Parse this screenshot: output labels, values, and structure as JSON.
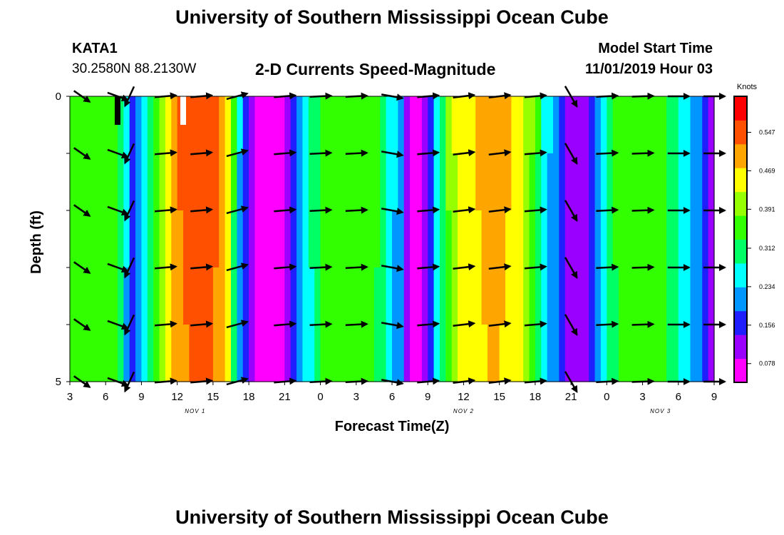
{
  "header": {
    "title": "University of Southern Mississippi Ocean Cube",
    "station_id": "KATA1",
    "station_coords": "30.2580N 88.2130W",
    "subtitle": "2-D Currents Speed-Magnitude",
    "model_start_label": "Model Start Time",
    "model_start_value": "11/01/2019 Hour 03"
  },
  "footer": {
    "title": "University of Southern Mississippi Ocean Cube"
  },
  "chart_data": {
    "type": "heatmap",
    "title": "2-D Currents Speed-Magnitude",
    "xlabel": "Forecast Time(Z)",
    "ylabel": "Depth (ft)",
    "x_ticks": [
      "3",
      "6",
      "9",
      "12",
      "15",
      "18",
      "21",
      "0",
      "3",
      "6",
      "9",
      "12",
      "15",
      "18",
      "21",
      "0",
      "3",
      "6",
      "9"
    ],
    "x_hours": [
      3,
      6,
      9,
      12,
      15,
      18,
      21,
      24,
      27,
      30,
      33,
      36,
      39,
      42,
      45,
      48,
      51,
      54,
      57
    ],
    "x_range": [
      3,
      57
    ],
    "date_labels": [
      {
        "label": "NOV 1",
        "hour": 13.5
      },
      {
        "label": "NOV 2",
        "hour": 36
      },
      {
        "label": "NOV 3",
        "hour": 52.5
      }
    ],
    "y_ticks": [
      "0",
      "5"
    ],
    "ylim": [
      0,
      5
    ],
    "colorbar": {
      "unit": "Knots",
      "ticks": [
        "0.547",
        "0.469",
        "0.391",
        "0.312",
        "0.234",
        "0.156",
        "0.078"
      ],
      "tick_values": [
        0.547,
        0.469,
        0.391,
        0.312,
        0.234,
        0.156,
        0.078
      ],
      "range": [
        0.04,
        0.62
      ],
      "colors": [
        "#ff00ff",
        "#9900ff",
        "#1e1eff",
        "#0096ff",
        "#00ffff",
        "#00ff64",
        "#32ff00",
        "#96ff00",
        "#ffff00",
        "#ffa500",
        "#ff5000",
        "#ff0000"
      ]
    },
    "speed_series": {
      "hours": [
        3,
        4,
        5,
        6,
        7,
        7.5,
        8,
        8.5,
        9,
        10,
        11,
        12,
        13,
        14,
        15,
        16,
        16.5,
        17,
        18,
        19,
        20,
        21,
        22,
        23,
        24,
        25,
        26,
        27,
        28,
        29,
        30,
        31,
        31.5,
        32,
        32.5,
        33,
        34,
        35,
        36,
        37,
        38,
        39,
        40,
        41,
        42,
        43,
        44,
        45,
        46,
        47,
        48,
        49,
        50,
        51,
        52,
        53,
        54,
        55,
        56,
        57
      ],
      "knots": [
        0.37,
        0.36,
        0.34,
        0.37,
        0.34,
        0.28,
        0.2,
        0.17,
        0.25,
        0.35,
        0.42,
        0.53,
        0.55,
        0.55,
        0.55,
        0.5,
        0.4,
        0.27,
        0.13,
        0.07,
        0.07,
        0.09,
        0.19,
        0.27,
        0.35,
        0.37,
        0.38,
        0.38,
        0.37,
        0.33,
        0.26,
        0.17,
        0.08,
        0.07,
        0.08,
        0.13,
        0.28,
        0.42,
        0.46,
        0.48,
        0.5,
        0.5,
        0.48,
        0.45,
        0.36,
        0.25,
        0.19,
        0.1,
        0.09,
        0.2,
        0.3,
        0.35,
        0.37,
        0.38,
        0.37,
        0.34,
        0.29,
        0.24,
        0.18,
        0.12
      ]
    },
    "surface_markers": [
      {
        "hour": 12.5,
        "color": "#ffffff"
      },
      {
        "hour": 7.0,
        "color": "#000000"
      }
    ],
    "vector_hours": [
      4,
      7,
      8,
      11,
      14,
      17,
      21,
      24,
      27,
      30,
      33,
      36,
      39,
      42,
      45,
      48,
      51,
      54,
      57
    ],
    "vector_depths": [
      0,
      1,
      2,
      3,
      4,
      5
    ],
    "vector_directions_deg": [
      -35,
      -20,
      -115,
      5,
      5,
      15,
      5,
      3,
      3,
      -10,
      5,
      7,
      7,
      5,
      -60,
      3,
      2,
      0,
      0
    ],
    "vector_lengths": [
      0.9,
      1.0,
      1.0,
      1.0,
      1.0,
      1.0,
      1.0,
      1.0,
      1.0,
      1.0,
      1.0,
      1.0,
      1.0,
      1.0,
      1.1,
      1.0,
      1.0,
      1.0,
      1.0
    ]
  }
}
